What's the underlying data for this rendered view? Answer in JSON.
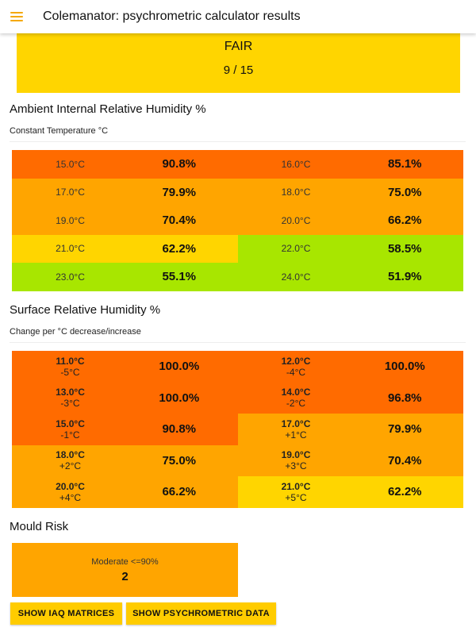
{
  "app": {
    "title": "Colemanator: psychrometric calculator results"
  },
  "score": {
    "label": "FAIR",
    "value": "9 / 15"
  },
  "colors": {
    "red": "#ff6b00",
    "orange": "#ffa500",
    "yellow": "#ffd500",
    "green": "#a8e600"
  },
  "ambient": {
    "title": "Ambient Internal Relative Humidity %",
    "subtitle": "Constant Temperature °C",
    "rows": [
      {
        "temp": "15.0°C",
        "value": "90.8%",
        "color": "#ff6b00"
      },
      {
        "temp": "16.0°C",
        "value": "85.1%",
        "color": "#ff6b00"
      },
      {
        "temp": "17.0°C",
        "value": "79.9%",
        "color": "#ffa500"
      },
      {
        "temp": "18.0°C",
        "value": "75.0%",
        "color": "#ffa500"
      },
      {
        "temp": "19.0°C",
        "value": "70.4%",
        "color": "#ffa500"
      },
      {
        "temp": "20.0°C",
        "value": "66.2%",
        "color": "#ffa500"
      },
      {
        "temp": "21.0°C",
        "value": "62.2%",
        "color": "#ffd500"
      },
      {
        "temp": "22.0°C",
        "value": "58.5%",
        "color": "#a8e600"
      },
      {
        "temp": "23.0°C",
        "value": "55.1%",
        "color": "#a8e600"
      },
      {
        "temp": "24.0°C",
        "value": "51.9%",
        "color": "#a8e600"
      }
    ]
  },
  "surface": {
    "title": "Surface Relative Humidity %",
    "subtitle": "Change per °C decrease/increase",
    "rows": [
      {
        "temp": "11.0°C",
        "delta": "-5°C",
        "value": "100.0%",
        "color": "#ff6b00"
      },
      {
        "temp": "12.0°C",
        "delta": "-4°C",
        "value": "100.0%",
        "color": "#ff6b00"
      },
      {
        "temp": "13.0°C",
        "delta": "-3°C",
        "value": "100.0%",
        "color": "#ff6b00"
      },
      {
        "temp": "14.0°C",
        "delta": "-2°C",
        "value": "96.8%",
        "color": "#ff6b00"
      },
      {
        "temp": "15.0°C",
        "delta": "-1°C",
        "value": "90.8%",
        "color": "#ff6b00"
      },
      {
        "temp": "17.0°C",
        "delta": "+1°C",
        "value": "79.9%",
        "color": "#ffa500"
      },
      {
        "temp": "18.0°C",
        "delta": "+2°C",
        "value": "75.0%",
        "color": "#ffa500"
      },
      {
        "temp": "19.0°C",
        "delta": "+3°C",
        "value": "70.4%",
        "color": "#ffa500"
      },
      {
        "temp": "20.0°C",
        "delta": "+4°C",
        "value": "66.2%",
        "color": "#ffa500"
      },
      {
        "temp": "21.0°C",
        "delta": "+5°C",
        "value": "62.2%",
        "color": "#ffd500"
      }
    ]
  },
  "mould": {
    "title": "Mould Risk",
    "label": "Moderate <=90%",
    "value": "2"
  },
  "buttons": {
    "iaq": "SHOW IAQ MATRICES",
    "psychrometric": "SHOW PSYCHROMETRIC DATA"
  }
}
